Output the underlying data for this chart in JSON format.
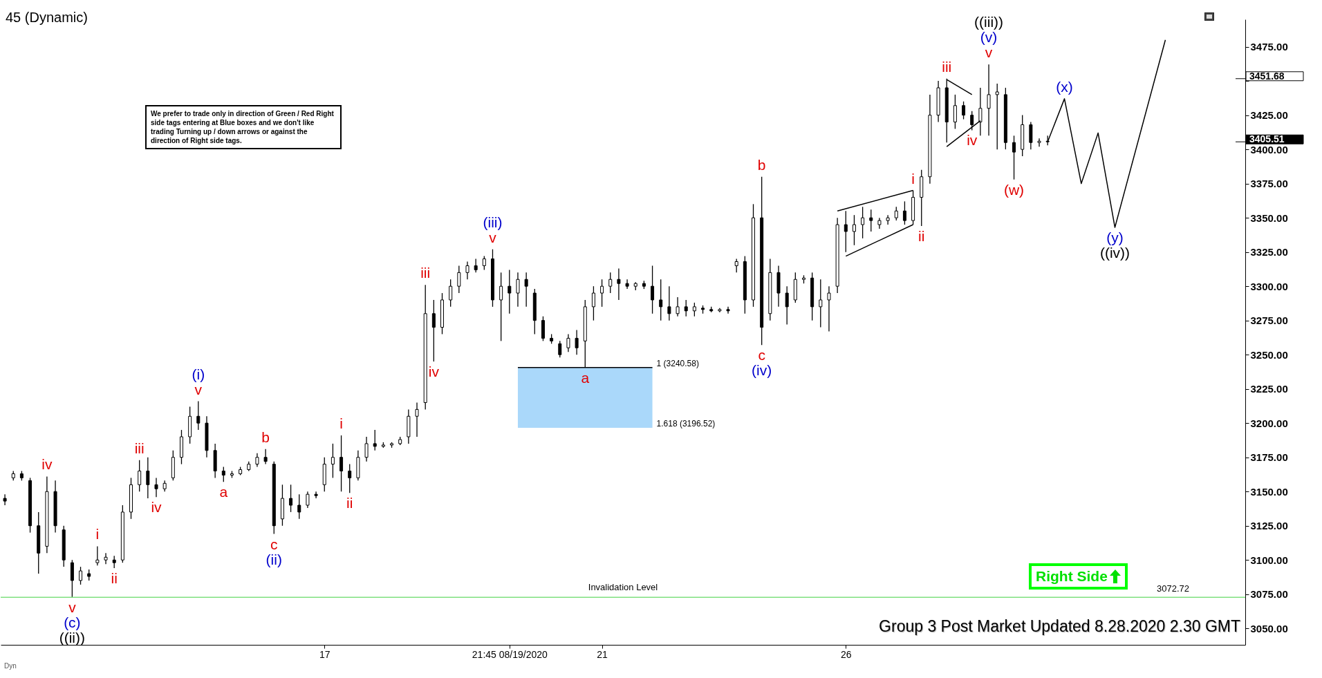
{
  "chart_data": {
    "type": "candlestick",
    "title": "45 (Dynamic)",
    "categories": [
      null,
      null,
      null,
      null,
      null,
      null,
      null,
      null,
      null,
      null,
      null,
      null,
      null,
      null,
      null,
      null,
      null,
      null,
      null,
      null,
      null,
      null,
      null,
      null,
      null,
      null,
      null,
      null,
      null,
      null,
      null,
      null,
      null,
      null,
      null,
      null,
      null,
      null,
      "17",
      null,
      null,
      null,
      null,
      null,
      null,
      null,
      null,
      null,
      null,
      null,
      null,
      null,
      null,
      null,
      null,
      null,
      null,
      null,
      null,
      null,
      "21:45 08/19/2020",
      null,
      null,
      null,
      null,
      null,
      null,
      null,
      null,
      null,
      null,
      "21",
      null,
      null,
      null,
      null,
      null,
      null,
      null,
      null,
      null,
      null,
      null,
      null,
      null,
      null,
      null,
      null,
      null,
      null,
      null,
      null,
      null,
      null,
      null,
      null,
      null,
      null,
      null,
      null,
      "26",
      null,
      null,
      null,
      null,
      null,
      null,
      null,
      null,
      null,
      null,
      null,
      null,
      null,
      null,
      null,
      null,
      null,
      null,
      null,
      null,
      null,
      null,
      null,
      null,
      null,
      null,
      null,
      null,
      null,
      null,
      null,
      null,
      null,
      null,
      null,
      null,
      null,
      null,
      null,
      null,
      null,
      null,
      null,
      null,
      null,
      null,
      null
    ],
    "ohlc": [
      [
        3145,
        3148,
        3140,
        3143
      ],
      [
        3160,
        3165,
        3158,
        3163
      ],
      [
        3163,
        3165,
        3158,
        3160
      ],
      [
        3158,
        3160,
        3120,
        3125
      ],
      [
        3125,
        3135,
        3090,
        3105
      ],
      [
        3110,
        3161,
        3105,
        3150
      ],
      [
        3150,
        3158,
        3120,
        3125
      ],
      [
        3122,
        3125,
        3095,
        3100
      ],
      [
        3098,
        3100,
        3072.72,
        3085
      ],
      [
        3085,
        3095,
        3082,
        3092
      ],
      [
        3090,
        3093,
        3085,
        3088
      ],
      [
        3098,
        3110,
        3096,
        3100
      ],
      [
        3100,
        3105,
        3097,
        3102
      ],
      [
        3100,
        3103,
        3094,
        3098
      ],
      [
        3100,
        3140,
        3098,
        3135
      ],
      [
        3135,
        3160,
        3130,
        3155
      ],
      [
        3155,
        3173,
        3150,
        3165
      ],
      [
        3165,
        3175,
        3145,
        3155
      ],
      [
        3155,
        3160,
        3146,
        3152
      ],
      [
        3152,
        3158,
        3150,
        3156
      ],
      [
        3160,
        3180,
        3158,
        3175
      ],
      [
        3175,
        3195,
        3170,
        3190
      ],
      [
        3190,
        3212,
        3185,
        3205
      ],
      [
        3205,
        3216,
        3195,
        3200
      ],
      [
        3200,
        3205,
        3175,
        3180
      ],
      [
        3180,
        3185,
        3160,
        3165
      ],
      [
        3165,
        3168,
        3157,
        3162
      ],
      [
        3162,
        3165,
        3160,
        3163
      ],
      [
        3163,
        3168,
        3162,
        3166
      ],
      [
        3166,
        3172,
        3165,
        3170
      ],
      [
        3170,
        3178,
        3168,
        3175
      ],
      [
        3175,
        3181,
        3170,
        3172
      ],
      [
        3170,
        3172,
        3119,
        3125
      ],
      [
        3130,
        3155,
        3125,
        3145
      ],
      [
        3145,
        3155,
        3135,
        3140
      ],
      [
        3140,
        3148,
        3130,
        3135
      ],
      [
        3140,
        3150,
        3138,
        3148
      ],
      [
        3148,
        3150,
        3145,
        3147
      ],
      [
        3155,
        3175,
        3150,
        3170
      ],
      [
        3170,
        3185,
        3160,
        3175
      ],
      [
        3175,
        3191,
        3150,
        3165
      ],
      [
        3165,
        3170,
        3149,
        3160
      ],
      [
        3160,
        3180,
        3158,
        3175
      ],
      [
        3175,
        3190,
        3172,
        3185
      ],
      [
        3185,
        3195,
        3180,
        3183
      ],
      [
        3183,
        3186,
        3182,
        3184
      ],
      [
        3184,
        3186,
        3182,
        3185
      ],
      [
        3185,
        3190,
        3184,
        3188
      ],
      [
        3190,
        3210,
        3185,
        3205
      ],
      [
        3205,
        3215,
        3190,
        3210
      ],
      [
        3215,
        3301,
        3210,
        3280
      ],
      [
        3280,
        3290,
        3245,
        3270
      ],
      [
        3270,
        3295,
        3265,
        3290
      ],
      [
        3290,
        3305,
        3285,
        3300
      ],
      [
        3300,
        3315,
        3295,
        3310
      ],
      [
        3310,
        3318,
        3305,
        3315
      ],
      [
        3315,
        3320,
        3310,
        3312
      ],
      [
        3315,
        3322,
        3312,
        3320
      ],
      [
        3320,
        3327,
        3285,
        3290
      ],
      [
        3290,
        3310,
        3260,
        3300
      ],
      [
        3300,
        3312,
        3280,
        3295
      ],
      [
        3295,
        3310,
        3285,
        3305
      ],
      [
        3305,
        3310,
        3285,
        3300
      ],
      [
        3295,
        3298,
        3265,
        3275
      ],
      [
        3275,
        3278,
        3260,
        3262
      ],
      [
        3262,
        3265,
        3258,
        3260
      ],
      [
        3258,
        3260,
        3248,
        3250
      ],
      [
        3255,
        3265,
        3252,
        3262
      ],
      [
        3262,
        3268,
        3250,
        3255
      ],
      [
        3260,
        3290,
        3240.58,
        3285
      ],
      [
        3285,
        3300,
        3275,
        3295
      ],
      [
        3295,
        3305,
        3285,
        3300
      ],
      [
        3300,
        3310,
        3295,
        3305
      ],
      [
        3305,
        3313,
        3290,
        3302
      ],
      [
        3302,
        3305,
        3298,
        3300
      ],
      [
        3300,
        3303,
        3297,
        3302
      ],
      [
        3302,
        3304,
        3298,
        3300
      ],
      [
        3300,
        3315,
        3280,
        3290
      ],
      [
        3290,
        3305,
        3275,
        3285
      ],
      [
        3285,
        3300,
        3275,
        3280
      ],
      [
        3280,
        3292,
        3278,
        3285
      ],
      [
        3285,
        3290,
        3278,
        3282
      ],
      [
        3282,
        3288,
        3278,
        3285
      ],
      [
        3284,
        3286,
        3280,
        3283
      ],
      [
        3283,
        3285,
        3281,
        3282
      ],
      [
        3282,
        3284,
        3281,
        3283
      ],
      [
        3283,
        3285,
        3280,
        3282
      ],
      [
        3315,
        3320,
        3310,
        3318
      ],
      [
        3318,
        3322,
        3280,
        3290
      ],
      [
        3290,
        3360,
        3285,
        3350
      ],
      [
        3350,
        3380,
        3257,
        3270
      ],
      [
        3280,
        3320,
        3275,
        3310
      ],
      [
        3310,
        3315,
        3285,
        3295
      ],
      [
        3295,
        3300,
        3272,
        3285
      ],
      [
        3290,
        3310,
        3288,
        3305
      ],
      [
        3305,
        3308,
        3302,
        3306
      ],
      [
        3306,
        3310,
        3275,
        3285
      ],
      [
        3285,
        3305,
        3270,
        3290
      ],
      [
        3290,
        3300,
        3267,
        3295
      ],
      [
        3300,
        3350,
        3295,
        3345
      ],
      [
        3345,
        3355,
        3325,
        3340
      ],
      [
        3340,
        3352,
        3330,
        3345
      ],
      [
        3345,
        3358,
        3335,
        3350
      ],
      [
        3350,
        3356,
        3340,
        3348
      ],
      [
        3345,
        3350,
        3342,
        3348
      ],
      [
        3348,
        3352,
        3345,
        3350
      ],
      [
        3350,
        3358,
        3348,
        3355
      ],
      [
        3355,
        3362,
        3345,
        3348
      ],
      [
        3348,
        3370,
        3345,
        3365
      ],
      [
        3365,
        3385,
        3344,
        3380
      ],
      [
        3380,
        3440,
        3375,
        3425
      ],
      [
        3425,
        3450,
        3420,
        3445
      ],
      [
        3445,
        3451.68,
        3405,
        3420
      ],
      [
        3420,
        3440,
        3415,
        3432
      ],
      [
        3432,
        3435,
        3422,
        3425
      ],
      [
        3425,
        3428,
        3414,
        3418
      ],
      [
        3420,
        3445,
        3410,
        3430
      ],
      [
        3430,
        3462,
        3410,
        3440
      ],
      [
        3440,
        3448,
        3400,
        3442
      ],
      [
        3440,
        3445,
        3400,
        3405
      ],
      [
        3405,
        3410,
        3378,
        3398
      ],
      [
        3400,
        3425,
        3395,
        3418
      ],
      [
        3418,
        3420,
        3400,
        3405
      ],
      [
        3405,
        3408,
        3402,
        3406
      ],
      [
        3406,
        3410,
        3403,
        3405.51
      ],
      null,
      null,
      null,
      null,
      null,
      null,
      null,
      null,
      null,
      null,
      null,
      null,
      null,
      null,
      null,
      null,
      null,
      null,
      null,
      null,
      null,
      null,
      null
    ],
    "series": [
      {
        "type": "line",
        "color": "#000000",
        "upper": [
          null,
          null,
          null,
          null,
          null,
          null,
          null,
          null,
          null,
          null,
          null,
          null,
          null,
          null,
          null,
          null,
          null,
          null,
          null,
          null,
          null,
          null,
          null,
          null,
          null,
          null,
          null,
          null,
          null,
          null,
          null,
          null,
          null,
          null,
          null,
          null,
          null,
          null,
          null,
          null,
          null,
          null,
          null,
          null,
          null,
          null,
          null,
          null,
          null,
          null,
          null,
          null,
          null,
          null,
          null,
          null,
          null,
          null,
          null,
          null,
          null,
          3240.58,
          3240.58,
          3240.58,
          3240.58,
          3240.58,
          3240.58,
          3240.58,
          3240.58,
          3240.58,
          3240.58,
          3240.58,
          3240.58,
          3240.58,
          3240.58,
          3240.58,
          3240.58,
          3240.58,
          null,
          null,
          null,
          null,
          null,
          null,
          null,
          null,
          null,
          null,
          null,
          null,
          null,
          null,
          null,
          null,
          null,
          null,
          null,
          null,
          null,
          null,
          null,
          null,
          null,
          null,
          null,
          null,
          null,
          null,
          null,
          null,
          null,
          null,
          null,
          null,
          null,
          null,
          null,
          null,
          null,
          null,
          null,
          null,
          null,
          null,
          null,
          null,
          null,
          null,
          null,
          null,
          null,
          null,
          null,
          null,
          null,
          null,
          null,
          null,
          null,
          null,
          null,
          null,
          null,
          null,
          null,
          null,
          null,
          null
        ],
        "values": [
          null,
          null,
          null,
          null,
          null,
          null,
          null,
          null,
          null,
          null,
          null,
          null,
          null,
          null,
          null,
          null,
          null,
          null,
          null,
          null,
          null,
          null,
          null,
          null,
          null,
          null,
          null,
          null,
          null,
          null,
          null,
          null,
          null,
          null,
          null,
          null,
          null,
          null,
          null,
          null,
          null,
          null,
          null,
          null,
          null,
          null,
          null,
          null,
          null,
          null,
          null,
          null,
          null,
          null,
          null,
          null,
          null,
          null,
          null,
          null,
          null,
          3240.58,
          3240.58,
          3240.58,
          3240.58,
          3240.58,
          3240.58,
          3240.58,
          3240.58,
          3240.58,
          3240.58,
          3240.58,
          3240.58,
          3240.58,
          3240.58,
          3240.58,
          3240.58,
          3240.58,
          null,
          null,
          null,
          null,
          null,
          null,
          null,
          null,
          null,
          null,
          null,
          null,
          null,
          null,
          null,
          null,
          null,
          null,
          null,
          null,
          null,
          null,
          null,
          null,
          null,
          null,
          null,
          null,
          null,
          null,
          null,
          null,
          null,
          null,
          null,
          null,
          null,
          null,
          null,
          null,
          null,
          null,
          null,
          null,
          null,
          null,
          null,
          null,
          null,
          null,
          null,
          null,
          null,
          null,
          null,
          null,
          null,
          null,
          null,
          null,
          null,
          null,
          null,
          null,
          null,
          null,
          null,
          null,
          null,
          null
        ],
        "lower": [
          null,
          null,
          null,
          null,
          null,
          null,
          null,
          null,
          null,
          null,
          null,
          null,
          null,
          null,
          null,
          null,
          null,
          null,
          null,
          null,
          null,
          null,
          null,
          null,
          null,
          null,
          null,
          null,
          null,
          null,
          null,
          null,
          null,
          null,
          null,
          null,
          null,
          null,
          null,
          null,
          null,
          null,
          null,
          null,
          null,
          null,
          null,
          null,
          null,
          null,
          null,
          null,
          null,
          null,
          null,
          null,
          null,
          null,
          null,
          null,
          null,
          3196.52,
          3196.52,
          3196.52,
          3196.52,
          3196.52,
          3196.52,
          3196.52,
          3196.52,
          3196.52,
          3196.52,
          3196.52,
          3196.52,
          3196.52,
          3196.52,
          3196.52,
          3196.52,
          3196.52,
          null,
          null,
          null,
          null,
          null,
          null,
          null,
          null,
          null,
          null,
          null,
          null,
          null,
          null,
          null,
          null,
          null,
          null,
          null,
          null,
          null,
          null,
          null,
          null,
          null,
          null,
          null,
          null,
          null,
          null,
          null,
          null,
          null,
          null,
          null,
          null,
          null,
          null,
          null,
          null,
          null,
          null,
          null,
          null,
          null,
          null,
          null,
          null,
          null,
          null,
          null,
          null,
          null,
          null,
          null,
          null,
          null,
          null,
          null,
          null,
          null,
          null,
          null,
          null,
          null,
          null,
          null,
          null,
          null,
          null
        ]
      },
      {
        "type": "line",
        "color": "#000000",
        "values": [
          null,
          null,
          null,
          null,
          null,
          null,
          null,
          null,
          null,
          null,
          null,
          null,
          null,
          null,
          null,
          null,
          null,
          null,
          null,
          null,
          null,
          null,
          null,
          null,
          null,
          null,
          null,
          null,
          null,
          null,
          null,
          null,
          null,
          null,
          null,
          null,
          null,
          null,
          null,
          null,
          null,
          null,
          null,
          null,
          null,
          null,
          null,
          null,
          null,
          null,
          null,
          null,
          null,
          null,
          null,
          null,
          null,
          null,
          null,
          null,
          null,
          null,
          null,
          null,
          null,
          null,
          null,
          null,
          null,
          null,
          null,
          null,
          null,
          null,
          null,
          null,
          null,
          null,
          null,
          null,
          null,
          null,
          null,
          null,
          null,
          null,
          null,
          null,
          null,
          null,
          null,
          null,
          null,
          null,
          null,
          null,
          null,
          null,
          null,
          null,
          null,
          null,
          null,
          null,
          null,
          null,
          null,
          null,
          null,
          null,
          null,
          null,
          null,
          null,
          null,
          null,
          null,
          null,
          null,
          null,
          null,
          null,
          null,
          null,
          3405.51,
          null,
          3437,
          null,
          3375,
          null,
          3412,
          null,
          3343,
          null,
          null,
          null,
          null,
          null,
          3480,
          null,
          null,
          null,
          null,
          null,
          null,
          null,
          null,
          null
        ]
      },
      {
        "type": "line",
        "color": "#000000",
        "values": [
          null,
          null,
          null,
          null,
          null,
          null,
          null,
          null,
          null,
          null,
          null,
          null,
          null,
          null,
          null,
          null,
          null,
          null,
          null,
          null,
          null,
          null,
          null,
          null,
          null,
          null,
          null,
          null,
          null,
          null,
          null,
          null,
          null,
          null,
          null,
          null,
          null,
          null,
          null,
          null,
          null,
          null,
          null,
          null,
          null,
          null,
          null,
          null,
          null,
          null,
          null,
          null,
          null,
          null,
          null,
          null,
          null,
          null,
          null,
          null,
          null,
          null,
          null,
          null,
          null,
          null,
          null,
          null,
          null,
          null,
          null,
          null,
          null,
          null,
          null,
          null,
          null,
          null,
          null,
          null,
          null,
          null,
          null,
          null,
          null,
          null,
          null,
          null,
          null,
          null,
          null,
          null,
          null,
          null,
          null,
          null,
          null,
          null,
          null,
          3355,
          null,
          null,
          null,
          null,
          null,
          null,
          null,
          null,
          3370,
          null,
          null,
          null,
          null,
          null,
          null,
          null,
          null,
          null,
          null,
          null,
          null,
          null,
          null,
          null,
          null,
          null,
          null,
          null,
          null,
          null,
          null,
          null,
          null,
          null,
          null,
          null,
          null,
          null,
          null,
          null,
          null,
          null,
          null,
          null,
          null,
          null,
          null,
          null
        ]
      },
      {
        "type": "line",
        "color": "#000000",
        "values": [
          null,
          null,
          null,
          null,
          null,
          null,
          null,
          null,
          null,
          null,
          null,
          null,
          null,
          null,
          null,
          null,
          null,
          null,
          null,
          null,
          null,
          null,
          null,
          null,
          null,
          null,
          null,
          null,
          null,
          null,
          null,
          null,
          null,
          null,
          null,
          null,
          null,
          null,
          null,
          null,
          null,
          null,
          null,
          null,
          null,
          null,
          null,
          null,
          null,
          null,
          null,
          null,
          null,
          null,
          null,
          null,
          null,
          null,
          null,
          null,
          null,
          null,
          null,
          null,
          null,
          null,
          null,
          null,
          null,
          null,
          null,
          null,
          null,
          null,
          null,
          null,
          null,
          null,
          null,
          null,
          null,
          null,
          null,
          null,
          null,
          null,
          null,
          null,
          null,
          null,
          null,
          null,
          null,
          null,
          null,
          null,
          null,
          null,
          null,
          null,
          3322,
          null,
          null,
          null,
          null,
          null,
          null,
          null,
          3345,
          null,
          null,
          null,
          null,
          null,
          null,
          null,
          null,
          null,
          null,
          null,
          null,
          null,
          null,
          null,
          null,
          null,
          null,
          null,
          null,
          null,
          null,
          null,
          null,
          null,
          null,
          null,
          null,
          null,
          null,
          null,
          null,
          null,
          null,
          null,
          null,
          null,
          null,
          null
        ]
      },
      {
        "type": "line",
        "color": "#000000",
        "values": [
          null,
          null,
          null,
          null,
          null,
          null,
          null,
          null,
          null,
          null,
          null,
          null,
          null,
          null,
          null,
          null,
          null,
          null,
          null,
          null,
          null,
          null,
          null,
          null,
          null,
          null,
          null,
          null,
          null,
          null,
          null,
          null,
          null,
          null,
          null,
          null,
          null,
          null,
          null,
          null,
          null,
          null,
          null,
          null,
          null,
          null,
          null,
          null,
          null,
          null,
          null,
          null,
          null,
          null,
          null,
          null,
          null,
          null,
          null,
          null,
          null,
          null,
          null,
          null,
          null,
          null,
          null,
          null,
          null,
          null,
          null,
          null,
          null,
          null,
          null,
          null,
          null,
          null,
          null,
          null,
          null,
          null,
          null,
          null,
          null,
          null,
          null,
          null,
          null,
          null,
          null,
          null,
          null,
          null,
          null,
          null,
          null,
          null,
          null,
          null,
          null,
          null,
          null,
          null,
          null,
          null,
          null,
          null,
          null,
          null,
          null,
          null,
          3451,
          null,
          null,
          3440,
          null,
          null,
          null,
          null,
          null,
          null,
          null,
          null,
          null,
          null,
          null,
          null,
          null,
          null,
          null,
          null,
          null,
          null,
          null,
          null,
          null,
          null,
          null,
          null,
          null,
          null,
          null,
          null,
          null,
          null,
          null,
          null
        ]
      },
      {
        "type": "line",
        "color": "#000000",
        "values": [
          null,
          null,
          null,
          null,
          null,
          null,
          null,
          null,
          null,
          null,
          null,
          null,
          null,
          null,
          null,
          null,
          null,
          null,
          null,
          null,
          null,
          null,
          null,
          null,
          null,
          null,
          null,
          null,
          null,
          null,
          null,
          null,
          null,
          null,
          null,
          null,
          null,
          null,
          null,
          null,
          null,
          null,
          null,
          null,
          null,
          null,
          null,
          null,
          null,
          null,
          null,
          null,
          null,
          null,
          null,
          null,
          null,
          null,
          null,
          null,
          null,
          null,
          null,
          null,
          null,
          null,
          null,
          null,
          null,
          null,
          null,
          null,
          null,
          null,
          null,
          null,
          null,
          null,
          null,
          null,
          null,
          null,
          null,
          null,
          null,
          null,
          null,
          null,
          null,
          null,
          null,
          null,
          null,
          null,
          null,
          null,
          null,
          null,
          null,
          null,
          null,
          null,
          null,
          null,
          null,
          null,
          null,
          null,
          null,
          null,
          null,
          null,
          3402,
          null,
          null,
          null,
          3421,
          null,
          null,
          null,
          null,
          null,
          null,
          null,
          null,
          null,
          null,
          null,
          null,
          null,
          null,
          null,
          null,
          null,
          null,
          null,
          null,
          null,
          null,
          null,
          null,
          null,
          null,
          null,
          null,
          null,
          null,
          null
        ]
      }
    ],
    "ylim": [
      3038,
      3495
    ],
    "yticks": [
      {
        "value": 3050,
        "label": "3050.00"
      },
      {
        "value": 3075,
        "label": "3075.00"
      },
      {
        "value": 3100,
        "label": "3100.00"
      },
      {
        "value": 3125,
        "label": "3125.00"
      },
      {
        "value": 3150,
        "label": "3150.00"
      },
      {
        "value": 3175,
        "label": "3175.00"
      },
      {
        "value": 3200,
        "label": "3200.00"
      },
      {
        "value": 3225,
        "label": "3225.00"
      },
      {
        "value": 3250,
        "label": "3250.00"
      },
      {
        "value": 3275,
        "label": "3275.00"
      },
      {
        "value": 3300,
        "label": "3300.00"
      },
      {
        "value": 3325,
        "label": "3325.00"
      },
      {
        "value": 3350,
        "label": "3350.00"
      },
      {
        "value": 3375,
        "label": "3375.00"
      },
      {
        "value": 3400,
        "label": "3400.00"
      },
      {
        "value": 3425,
        "label": "3425.00"
      },
      {
        "value": 3450,
        "label": null
      },
      {
        "value": 3475,
        "label": "3475.00"
      }
    ],
    "ref_lines": [
      {
        "axis": "y",
        "value": 3072.72,
        "label": "Invalidation Level",
        "color": "#7fe07f"
      },
      {
        "axis": "y",
        "value": 3451.68,
        "label": "3451.68"
      },
      {
        "axis": "y",
        "value": 3405.51,
        "label": "3405.51",
        "color": "#000000"
      }
    ],
    "annotations": [
      "We prefer to trade only in direction of Green / Red Right side tags entering at Blue boxes and we don't like trading Turning up / down arrows or against the direction of Right side tags.",
      "Group 3 Post Market  Updated 8.28.2020 2.30 GMT",
      "Right Side",
      "Dyn",
      "1 (3240.58)",
      "1.618 (3196.52)",
      "3072.72",
      {
        "text": "iv",
        "y": 3161
      },
      {
        "text": "v",
        "y": 3072.72
      },
      {
        "text": "(c)",
        "y": 3072.72
      },
      {
        "text": "((ii))",
        "y": 3072.72
      },
      {
        "text": "i",
        "y": 3110
      },
      {
        "text": "ii",
        "y": 3094
      },
      {
        "text": "iii",
        "y": 3173
      },
      {
        "text": "iv",
        "y": 3146
      },
      {
        "text": "v",
        "y": 3216
      },
      {
        "text": "(i)",
        "y": 3216
      },
      {
        "text": "a",
        "y": 3157
      },
      {
        "text": "b",
        "y": 3181
      },
      {
        "text": "c",
        "y": 3119
      },
      {
        "text": "(ii)",
        "y": 3119
      },
      {
        "text": "i",
        "y": 3191
      },
      {
        "text": "ii",
        "y": 3149
      },
      {
        "text": "iii",
        "y": 3301
      },
      {
        "text": "iv",
        "y": 3245
      },
      {
        "text": "v",
        "y": 3327
      },
      {
        "text": "(iii)",
        "y": 3327
      },
      {
        "text": "a",
        "y": 3240.58
      },
      {
        "text": "b",
        "y": 3380
      },
      {
        "text": "c",
        "y": 3257
      },
      {
        "text": "(iv)",
        "y": 3257
      },
      {
        "text": "i",
        "y": 3370
      },
      {
        "text": "ii",
        "y": 3344
      },
      {
        "text": "iii",
        "y": 3451.68
      },
      {
        "text": "iv",
        "y": 3414
      },
      {
        "text": "v",
        "y": 3462
      },
      {
        "text": "(v)",
        "y": 3462
      },
      {
        "text": "((iii))",
        "y": 3462
      },
      {
        "text": "(w)",
        "y": 3378
      },
      {
        "text": "(x)",
        "y": 3437
      },
      {
        "text": "(y)",
        "y": 3343
      },
      {
        "text": "((iv))",
        "y": 3343
      }
    ]
  }
}
